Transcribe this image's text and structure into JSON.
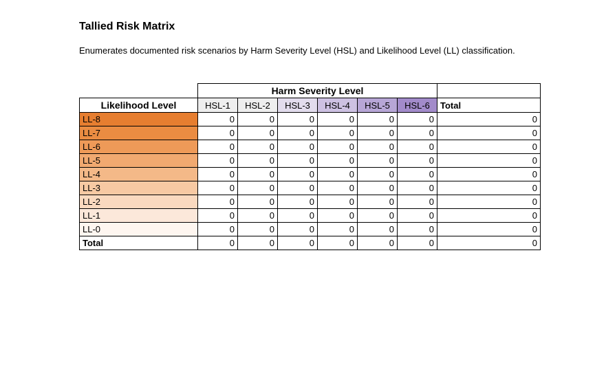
{
  "title": "Tallied Risk Matrix",
  "subtitle": "Enumerates documented risk scenarios by Harm Severity Level (HSL) and Likelihood Level (LL) classification.",
  "hsl_title": "Harm Severity Level",
  "ll_title": "Likelihood Level",
  "total_label": "Total",
  "hsl_columns": [
    "HSL-1",
    "HSL-2",
    "HSL-3",
    "HSL-4",
    "HSL-5",
    "HSL-6"
  ],
  "hsl_colors": [
    "#eeeeee",
    "#eeeeee",
    "#e2dced",
    "#cdc1e2",
    "#b7a6d6",
    "#a28bca"
  ],
  "ll_rows": [
    {
      "label": "LL-8",
      "color": "#e67e30",
      "values": [
        0,
        0,
        0,
        0,
        0,
        0
      ],
      "total": 0
    },
    {
      "label": "LL-7",
      "color": "#ea8c42",
      "values": [
        0,
        0,
        0,
        0,
        0,
        0
      ],
      "total": 0
    },
    {
      "label": "LL-6",
      "color": "#ee9a58",
      "values": [
        0,
        0,
        0,
        0,
        0,
        0
      ],
      "total": 0
    },
    {
      "label": "LL-5",
      "color": "#f1a970",
      "values": [
        0,
        0,
        0,
        0,
        0,
        0
      ],
      "total": 0
    },
    {
      "label": "LL-4",
      "color": "#f4b988",
      "values": [
        0,
        0,
        0,
        0,
        0,
        0
      ],
      "total": 0
    },
    {
      "label": "LL-3",
      "color": "#f7c9a3",
      "values": [
        0,
        0,
        0,
        0,
        0,
        0
      ],
      "total": 0
    },
    {
      "label": "LL-2",
      "color": "#fad9bf",
      "values": [
        0,
        0,
        0,
        0,
        0,
        0
      ],
      "total": 0
    },
    {
      "label": "LL-1",
      "color": "#fce8da",
      "values": [
        0,
        0,
        0,
        0,
        0,
        0
      ],
      "total": 0
    },
    {
      "label": "LL-0",
      "color": "#fef6f0",
      "values": [
        0,
        0,
        0,
        0,
        0,
        0
      ],
      "total": 0
    }
  ],
  "col_totals": [
    0,
    0,
    0,
    0,
    0,
    0
  ],
  "grand_total": 0
}
